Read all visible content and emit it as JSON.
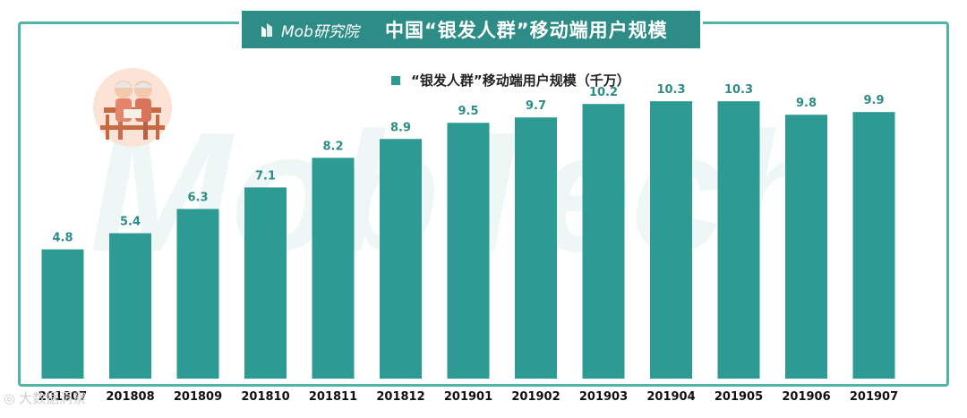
{
  "banner": {
    "brand": "Mob研究院",
    "title": "中国“银发人群”移动端用户规模",
    "color": "#2e8c86"
  },
  "colors": {
    "bar": "#2e9a94",
    "label": "#2e8c86",
    "frame": "#4fb3a6"
  },
  "corner_mark": "大数据洞察",
  "chart_data": {
    "type": "bar",
    "categories": [
      "201807",
      "201808",
      "201809",
      "201810",
      "201811",
      "201812",
      "201901",
      "201902",
      "201903",
      "201904",
      "201905",
      "201906",
      "201907"
    ],
    "series": [
      {
        "name": "“银发人群”移动端用户规模（千万）",
        "values": [
          4.8,
          5.4,
          6.3,
          7.1,
          8.2,
          8.9,
          9.5,
          9.7,
          10.2,
          10.3,
          10.3,
          9.8,
          9.9
        ]
      }
    ],
    "ylim": [
      0,
      12
    ],
    "grid": false,
    "legend": "top-center",
    "title": "中国“银发人群”移动端用户规模"
  }
}
